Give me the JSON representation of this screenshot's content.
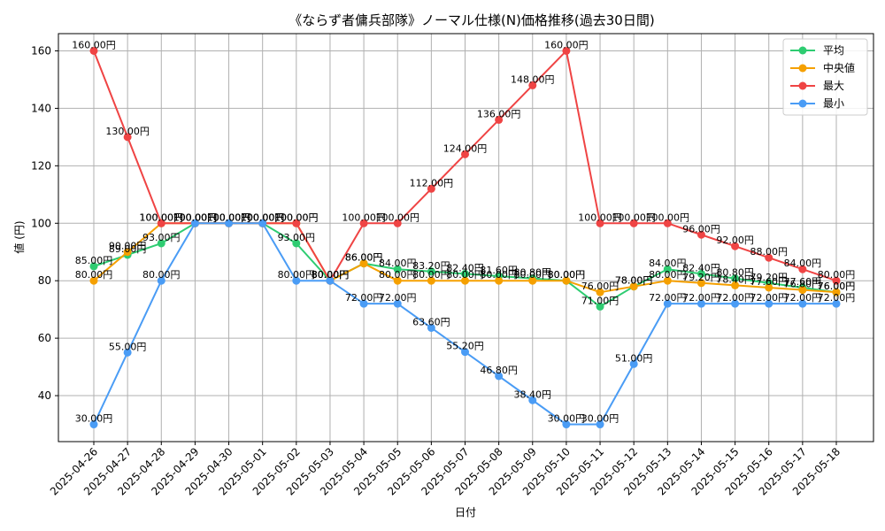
{
  "chart_data": {
    "type": "line",
    "title": "《ならず者傭兵部隊》ノーマル仕様(N)価格推移(過去30日間)",
    "xlabel": "日付",
    "ylabel": "値 (円)",
    "ylim": [
      24,
      166
    ],
    "yticks": [
      40,
      60,
      80,
      100,
      120,
      140,
      160
    ],
    "grid": true,
    "legend_position": "top-right",
    "value_suffix": "円",
    "categories": [
      "2025-04-26",
      "2025-04-27",
      "2025-04-28",
      "2025-04-29",
      "2025-04-30",
      "2025-05-01",
      "2025-05-02",
      "2025-05-03",
      "2025-05-04",
      "2025-05-05",
      "2025-05-06",
      "2025-05-07",
      "2025-05-08",
      "2025-05-09",
      "2025-05-10",
      "2025-05-11",
      "2025-05-12",
      "2025-05-13",
      "2025-05-14",
      "2025-05-15",
      "2025-05-16",
      "2025-05-17",
      "2025-05-18"
    ],
    "series": [
      {
        "name": "平均",
        "color": "#2ecc71",
        "values": [
          85,
          89,
          93,
          100,
          100,
          100,
          93,
          80,
          86,
          84,
          83.2,
          82.4,
          81.6,
          80.8,
          80,
          71,
          78,
          84,
          82.4,
          80.8,
          79.2,
          77.6,
          76
        ]
      },
      {
        "name": "中央値",
        "color": "#f5a000",
        "values": [
          80,
          90,
          100,
          100,
          100,
          100,
          100,
          80,
          86,
          80,
          80,
          80,
          80,
          80,
          80,
          76,
          78,
          80,
          79.2,
          78.4,
          77.6,
          76.8,
          76
        ]
      },
      {
        "name": "最大",
        "color": "#ef4444",
        "values": [
          160,
          130,
          100,
          100,
          100,
          100,
          100,
          80,
          100,
          100,
          112,
          124,
          136,
          148,
          160,
          100,
          100,
          100,
          96,
          92,
          88,
          84,
          80
        ]
      },
      {
        "name": "最小",
        "color": "#4a9cf5",
        "values": [
          30,
          55,
          80,
          100,
          100,
          100,
          80,
          80,
          72,
          72,
          63.6,
          55.2,
          46.8,
          38.4,
          30,
          30,
          51,
          72,
          72,
          72,
          72,
          72,
          72
        ]
      }
    ]
  }
}
